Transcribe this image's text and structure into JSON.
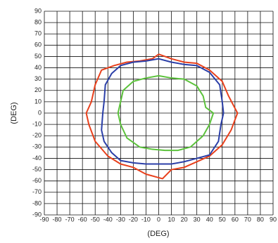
{
  "chart_data": {
    "type": "line",
    "xlabel": "(DEG)",
    "ylabel": "(DEG)",
    "xlim": [
      -90,
      90
    ],
    "ylim": [
      -90,
      90
    ],
    "xticks": [
      -90,
      -80,
      -70,
      -60,
      -50,
      -40,
      -30,
      -20,
      -10,
      0,
      10,
      20,
      30,
      40,
      50,
      60,
      70,
      80,
      90
    ],
    "yticks": [
      -90,
      -80,
      -70,
      -60,
      -50,
      -40,
      -30,
      -20,
      -10,
      0,
      10,
      20,
      30,
      40,
      50,
      60,
      70,
      80,
      90
    ],
    "grid": true,
    "series": [
      {
        "color": "#e8401c",
        "x": [
          0,
          10,
          20,
          30,
          40,
          50,
          55,
          62,
          57,
          50,
          40,
          30,
          20,
          10,
          3,
          -10,
          -20,
          -30,
          -40,
          -50,
          -55,
          -57,
          -53,
          -50,
          -45,
          -35,
          -25,
          -15,
          -5,
          0
        ],
        "values": [
          52,
          48,
          45,
          44,
          38,
          28,
          15,
          0,
          -15,
          -28,
          -38,
          -43,
          -48,
          -50,
          -58,
          -54,
          -48,
          -45,
          -38,
          -25,
          -10,
          0,
          10,
          25,
          38,
          42,
          45,
          46,
          48,
          52
        ]
      },
      {
        "color": "#2b3fa8",
        "x": [
          0,
          10,
          20,
          30,
          40,
          48,
          50,
          51,
          49,
          47,
          40,
          30,
          20,
          10,
          0,
          -10,
          -20,
          -30,
          -37,
          -43,
          -45,
          -44,
          -43,
          -42,
          -37,
          -30,
          -20,
          -10,
          0
        ],
        "values": [
          48,
          45,
          43,
          42,
          36,
          25,
          10,
          0,
          -10,
          -25,
          -37,
          -40,
          -43,
          -45,
          -45,
          -45,
          -44,
          -42,
          -35,
          -25,
          -15,
          0,
          10,
          25,
          35,
          42,
          45,
          46,
          48
        ]
      },
      {
        "color": "#5cc23c",
        "x": [
          0,
          10,
          20,
          30,
          35,
          37,
          43,
          40,
          35,
          25,
          15,
          5,
          -5,
          -15,
          -25,
          -30,
          -32,
          -30,
          -28,
          -20,
          -10,
          0
        ],
        "values": [
          33,
          31,
          30,
          24,
          15,
          5,
          0,
          -10,
          -20,
          -30,
          -33,
          -33,
          -32,
          -30,
          -22,
          -10,
          0,
          10,
          20,
          28,
          31,
          33
        ]
      }
    ]
  }
}
